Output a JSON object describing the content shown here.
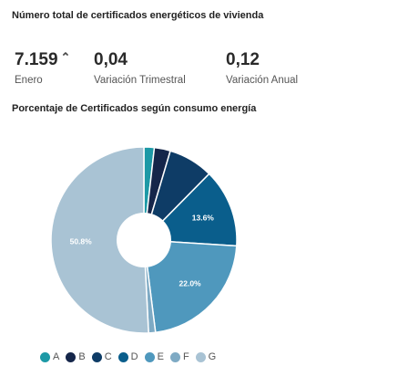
{
  "header": {
    "title": "Número total de certificados energéticos de vivienda"
  },
  "kpis": [
    {
      "value": "7.159",
      "trend": "⌃",
      "label": "Enero"
    },
    {
      "value": "0,04",
      "label": "Variación Trimestral"
    },
    {
      "value": "0,12",
      "label": "Variación Anual"
    }
  ],
  "chart_data": {
    "type": "pie",
    "donut": true,
    "title": "Porcentaje de Certificados según consumo energía",
    "categories": [
      "A",
      "B",
      "C",
      "D",
      "E",
      "F",
      "G"
    ],
    "values": [
      1.8,
      2.8,
      7.8,
      13.6,
      22.0,
      1.2,
      50.8
    ],
    "colors": [
      "#1d99a6",
      "#15264a",
      "#0e3c66",
      "#0a5e8c",
      "#4f98bd",
      "#7eaac4",
      "#a9c3d4"
    ],
    "data_labels": [
      "",
      "",
      "",
      "13.6%",
      "22.0%",
      "",
      "50.8%"
    ],
    "legend_position": "bottom"
  }
}
